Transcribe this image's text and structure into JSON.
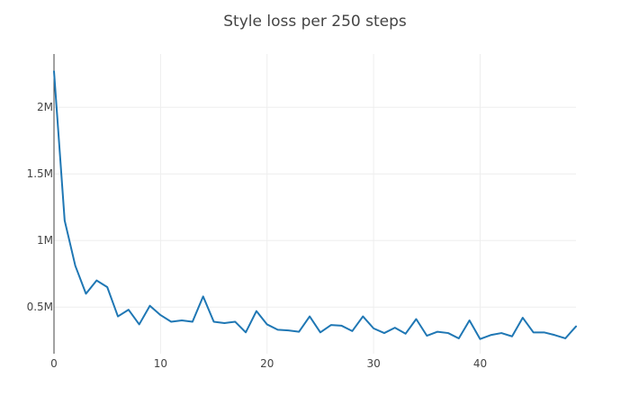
{
  "chart_data": {
    "type": "line",
    "title": "Style loss per 250 steps",
    "xlabel": "",
    "ylabel": "",
    "xlim": [
      0,
      49
    ],
    "ylim": [
      150000,
      2400000
    ],
    "x_ticks": [
      0,
      10,
      20,
      30,
      40
    ],
    "y_ticks": [
      500000,
      1000000,
      1500000,
      2000000
    ],
    "y_tick_labels": [
      "0.5M",
      "1M",
      "1.5M",
      "2M"
    ],
    "grid": true,
    "legend": "none",
    "series": [
      {
        "color": "#1f77b4",
        "x": [
          0,
          1,
          2,
          3,
          4,
          5,
          6,
          7,
          8,
          9,
          10,
          11,
          12,
          13,
          14,
          15,
          16,
          17,
          18,
          19,
          20,
          21,
          22,
          23,
          24,
          25,
          26,
          27,
          28,
          29,
          30,
          31,
          32,
          33,
          34,
          35,
          36,
          37,
          38,
          39,
          40,
          41,
          42,
          43,
          44,
          45,
          46,
          47,
          48,
          49
        ],
        "y": [
          2270000,
          1150000,
          810000,
          600000,
          700000,
          650000,
          430000,
          480000,
          370000,
          510000,
          440000,
          390000,
          400000,
          390000,
          580000,
          390000,
          380000,
          390000,
          310000,
          470000,
          370000,
          330000,
          325000,
          315000,
          430000,
          310000,
          365000,
          360000,
          320000,
          430000,
          340000,
          305000,
          345000,
          300000,
          410000,
          285000,
          315000,
          305000,
          265000,
          400000,
          260000,
          290000,
          305000,
          280000,
          420000,
          310000,
          310000,
          290000,
          265000,
          355000
        ]
      }
    ]
  }
}
